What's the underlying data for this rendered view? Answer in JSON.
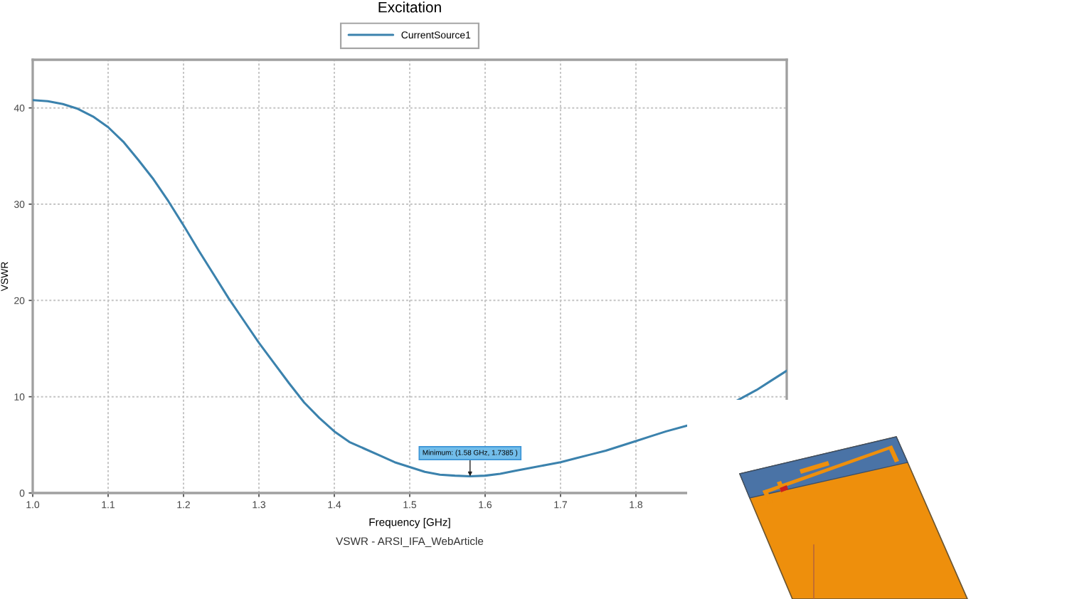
{
  "chart_data": {
    "type": "line",
    "title": "Excitation",
    "xlabel": "Frequency [GHz]",
    "ylabel": "VSWR",
    "annotations": [
      {
        "text": "Minimum: (1.58 GHz, 1.7385 )",
        "x": 1.58,
        "y": 1.7385
      },
      "VSWR - ARSI_IFA_WebArticle"
    ],
    "series": [
      {
        "name": "CurrentSource1",
        "color": "#3b82ad",
        "x": [
          1.0,
          1.02,
          1.04,
          1.06,
          1.08,
          1.1,
          1.12,
          1.14,
          1.16,
          1.18,
          1.2,
          1.22,
          1.24,
          1.26,
          1.28,
          1.3,
          1.32,
          1.34,
          1.36,
          1.38,
          1.4,
          1.42,
          1.44,
          1.46,
          1.48,
          1.5,
          1.52,
          1.54,
          1.56,
          1.58,
          1.6,
          1.62,
          1.64,
          1.66,
          1.68,
          1.7,
          1.72,
          1.74,
          1.76,
          1.78,
          1.8,
          1.82,
          1.84,
          1.868,
          1.88,
          1.9,
          1.92,
          1.934,
          1.96,
          1.98,
          2.0
        ],
        "values": [
          40.8,
          40.7,
          40.4,
          39.9,
          39.1,
          38.0,
          36.5,
          34.6,
          32.6,
          30.3,
          27.8,
          25.2,
          22.7,
          20.2,
          17.9,
          15.6,
          13.5,
          11.4,
          9.4,
          7.8,
          6.4,
          5.3,
          4.6,
          3.9,
          3.2,
          2.7,
          2.2,
          1.9,
          1.8,
          1.7385,
          1.8,
          2.0,
          2.3,
          2.6,
          2.9,
          3.2,
          3.6,
          4.0,
          4.4,
          4.9,
          5.4,
          5.9,
          6.4,
          7.0,
          null,
          null,
          null,
          9.6,
          10.7,
          11.7,
          12.7
        ]
      }
    ],
    "xlim": [
      1.0,
      2.0
    ],
    "ylim": [
      0,
      45
    ],
    "xticks": [
      {
        "value": 1.0,
        "label": "1.0"
      },
      1.1,
      1.2,
      1.3,
      1.4,
      1.5,
      1.6,
      1.7,
      1.8
    ],
    "yticks": [
      0,
      10,
      20,
      30,
      40
    ],
    "grid": true,
    "legend": "top",
    "marker": "none",
    "line_style": "solid"
  }
}
